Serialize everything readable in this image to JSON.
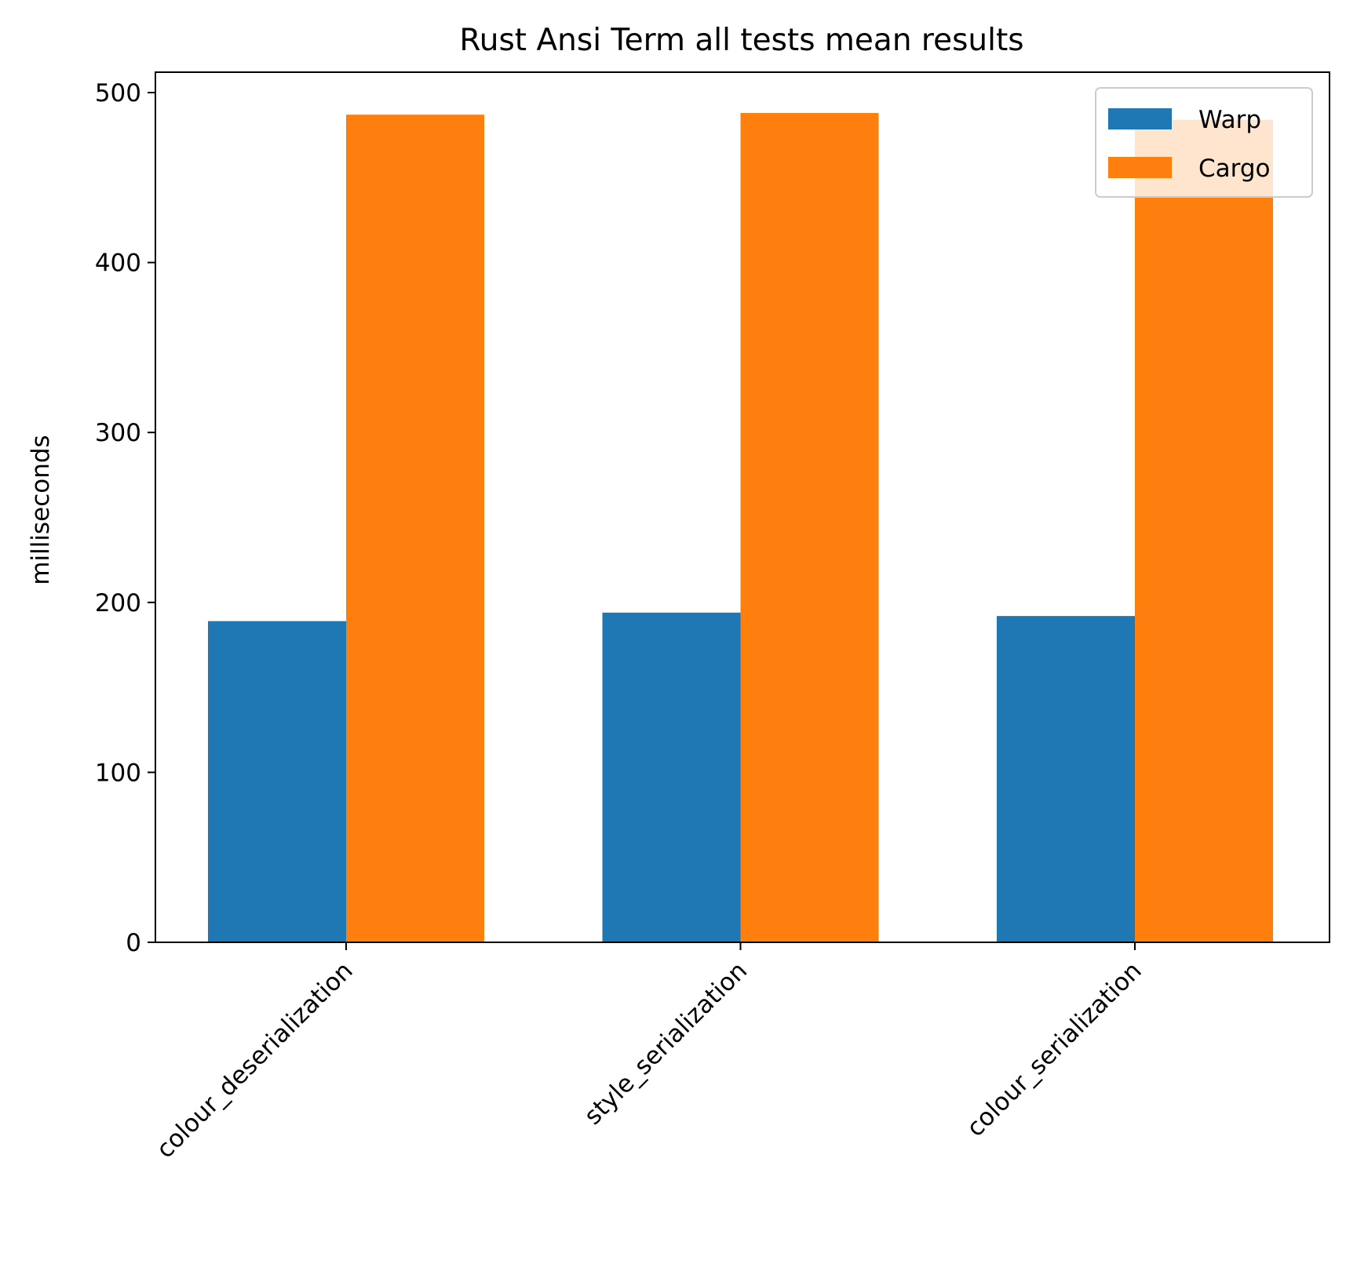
{
  "chart_data": {
    "type": "bar",
    "title": "Rust Ansi Term all tests mean results",
    "xlabel": "",
    "ylabel": "milliseconds",
    "categories": [
      "colour_deserialization",
      "style_serialization",
      "colour_serialization"
    ],
    "series": [
      {
        "name": "Warp",
        "color": "#1f77b4",
        "values": [
          189,
          194,
          192
        ]
      },
      {
        "name": "Cargo",
        "color": "#ff7f0e",
        "values": [
          487,
          488,
          484
        ]
      }
    ],
    "ylim": [
      0,
      512
    ],
    "yticks": [
      0,
      100,
      200,
      300,
      400,
      500
    ],
    "ytick_labels": [
      "0",
      "100",
      "200",
      "300",
      "400",
      "500"
    ],
    "legend_position": "top-right",
    "grid": false
  }
}
